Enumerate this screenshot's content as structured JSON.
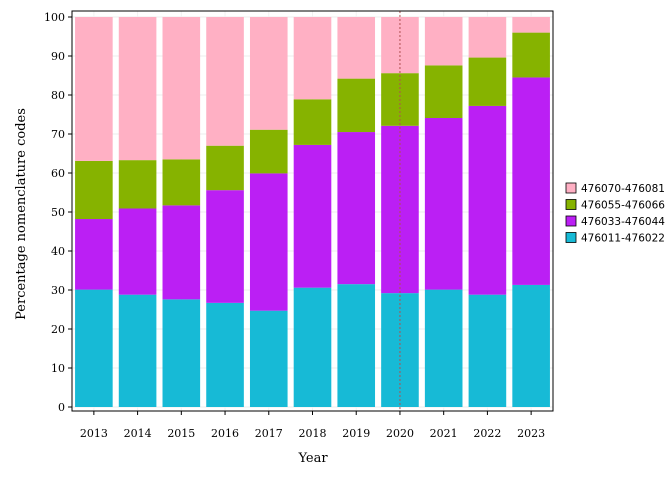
{
  "chart_data": {
    "type": "bar",
    "stacked": true,
    "xlabel": "Year",
    "ylabel": "Percentage nomenclature codes",
    "ylim": [
      0,
      100
    ],
    "yticks": [
      0,
      10,
      20,
      30,
      40,
      50,
      60,
      70,
      80,
      90,
      100
    ],
    "categories": [
      "2013",
      "2014",
      "2015",
      "2016",
      "2017",
      "2018",
      "2019",
      "2020",
      "2021",
      "2022",
      "2023"
    ],
    "series": [
      {
        "name": "476011-476022",
        "color": "#17BAD6",
        "values": [
          30.1,
          28.8,
          27.6,
          26.7,
          24.7,
          30.6,
          31.5,
          29.2,
          30.1,
          28.8,
          31.3
        ]
      },
      {
        "name": "476033-476044",
        "color": "#BB1FF4",
        "values": [
          18.1,
          22.1,
          24.1,
          28.9,
          35.2,
          36.6,
          39.0,
          42.9,
          44.0,
          48.4,
          53.2
        ]
      },
      {
        "name": "476055-476066",
        "color": "#86B300",
        "values": [
          14.9,
          12.4,
          11.8,
          11.4,
          11.2,
          11.7,
          13.7,
          13.5,
          13.5,
          12.4,
          11.5
        ]
      },
      {
        "name": "476070-476081",
        "color": "#FFB0C4",
        "values": [
          36.9,
          36.7,
          36.5,
          33.0,
          28.9,
          21.1,
          15.8,
          14.4,
          12.4,
          10.4,
          4.0
        ]
      }
    ],
    "reference_line": {
      "x": "2020",
      "style": "dotted",
      "color": "#B05050"
    },
    "legend": {
      "position": "right",
      "order": [
        "476070-476081",
        "476055-476066",
        "476033-476044",
        "476011-476022"
      ]
    },
    "grid": true
  }
}
